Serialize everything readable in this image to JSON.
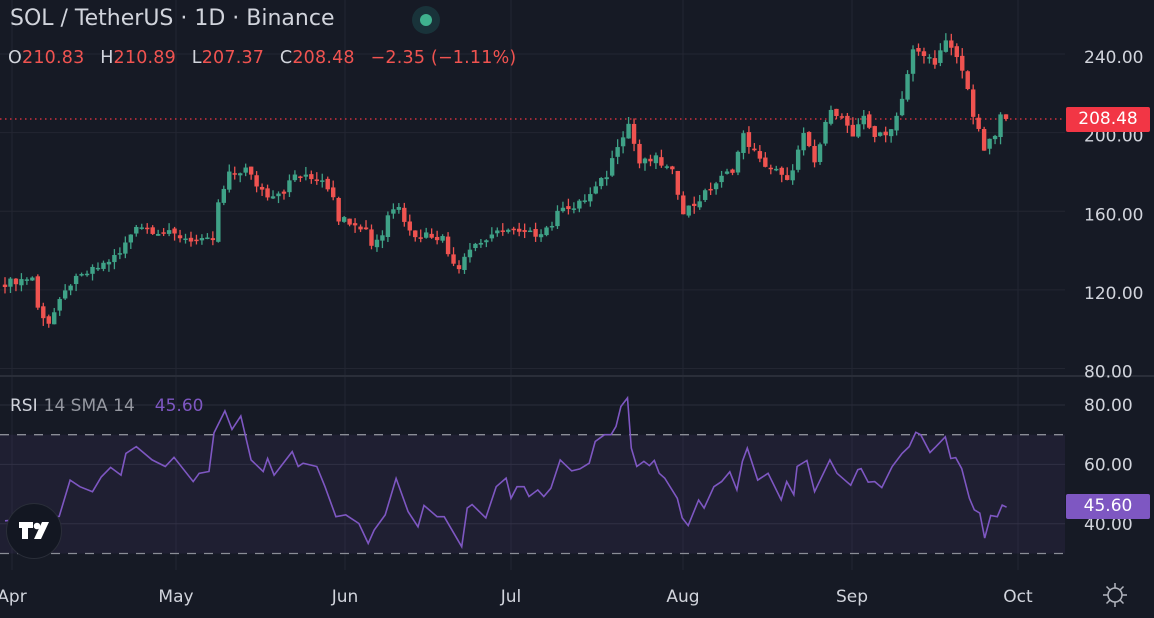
{
  "header": {
    "title": "SOL / TetherUS · 1D · Binance",
    "status_color": "#3fb18e"
  },
  "ohlc": {
    "o_label": "O",
    "o": "210.83",
    "h_label": "H",
    "h": "210.89",
    "l_label": "L",
    "l": "207.37",
    "c_label": "C",
    "c": "208.48",
    "change": "−2.35 (−1.11%)"
  },
  "price_axis": {
    "labels": [
      "240.00",
      "200.00",
      "160.00",
      "120.00",
      "80.00"
    ],
    "last_price": "208.48",
    "last_color": "#f23645"
  },
  "rsi": {
    "name": "RSI",
    "params": "14 SMA 14",
    "value": "45.60",
    "axis_labels": [
      "80.00",
      "60.00",
      "40.00"
    ],
    "color": "#7e57c2"
  },
  "time_axis": {
    "labels": [
      "Apr",
      "May",
      "Jun",
      "Jul",
      "Aug",
      "Sep",
      "Oct"
    ]
  },
  "colors": {
    "up": "#3fa287",
    "down": "#ef5350",
    "background": "#161a25"
  },
  "chart_data": [
    {
      "type": "candlestick",
      "title": "SOL / TetherUS · 1D · Binance",
      "x_unit": "days since Mar 31",
      "ylim": [
        80,
        260
      ],
      "yticks": [
        80,
        120,
        160,
        200,
        240
      ],
      "last_candle": {
        "open": 210.83,
        "high": 210.89,
        "low": 207.37,
        "close": 208.48
      },
      "close_path": [
        [
          0,
          125
        ],
        [
          5,
          128
        ],
        [
          6,
          112
        ],
        [
          8,
          105
        ],
        [
          10,
          115
        ],
        [
          12,
          125
        ],
        [
          15,
          130
        ],
        [
          17,
          133
        ],
        [
          21,
          140
        ],
        [
          23,
          150
        ],
        [
          24,
          155
        ],
        [
          27,
          152
        ],
        [
          30,
          150
        ],
        [
          33,
          148
        ],
        [
          36,
          146
        ],
        [
          38,
          147
        ],
        [
          39,
          165
        ],
        [
          41,
          180
        ],
        [
          44,
          183
        ],
        [
          46,
          175
        ],
        [
          48,
          170
        ],
        [
          51,
          172
        ],
        [
          53,
          180
        ],
        [
          56,
          178
        ],
        [
          58,
          178
        ],
        [
          60,
          170
        ],
        [
          61,
          158
        ],
        [
          64,
          156
        ],
        [
          66,
          152
        ],
        [
          67,
          145
        ],
        [
          69,
          150
        ],
        [
          70,
          160
        ],
        [
          72,
          165
        ],
        [
          73,
          158
        ],
        [
          75,
          148
        ],
        [
          77,
          150
        ],
        [
          80,
          148
        ],
        [
          81,
          140
        ],
        [
          83,
          133
        ],
        [
          84,
          140
        ],
        [
          86,
          145
        ],
        [
          89,
          148
        ],
        [
          91,
          153
        ],
        [
          94,
          150
        ],
        [
          97,
          150
        ],
        [
          100,
          155
        ],
        [
          102,
          165
        ],
        [
          104,
          163
        ],
        [
          107,
          170
        ],
        [
          110,
          180
        ],
        [
          112,
          196
        ],
        [
          114,
          206
        ],
        [
          116,
          186
        ],
        [
          119,
          188
        ],
        [
          122,
          181
        ],
        [
          124,
          162
        ],
        [
          126,
          165
        ],
        [
          130,
          176
        ],
        [
          133,
          183
        ],
        [
          135,
          200
        ],
        [
          138,
          187
        ],
        [
          141,
          182
        ],
        [
          143,
          176
        ],
        [
          146,
          200
        ],
        [
          148,
          186
        ],
        [
          151,
          215
        ],
        [
          154,
          205
        ],
        [
          155,
          198
        ],
        [
          157,
          210
        ],
        [
          159,
          200
        ],
        [
          161,
          200
        ],
        [
          163,
          210
        ],
        [
          164,
          220
        ],
        [
          166,
          243
        ],
        [
          170,
          238
        ],
        [
          172,
          247
        ],
        [
          174,
          240
        ],
        [
          176,
          225
        ],
        [
          177,
          210
        ],
        [
          179,
          193
        ],
        [
          181,
          200
        ],
        [
          182,
          210
        ],
        [
          183,
          208.48
        ]
      ]
    },
    {
      "type": "line",
      "title": "RSI 14 SMA 14",
      "ylim": [
        20,
        85
      ],
      "yticks": [
        40,
        60,
        80
      ],
      "bands": [
        30,
        70
      ],
      "last_value": 45.6,
      "points": [
        [
          0,
          41
        ],
        [
          9.9,
          42.5
        ],
        [
          11.9,
          54.7
        ],
        [
          13.7,
          52.5
        ],
        [
          16,
          50.8
        ],
        [
          17.6,
          55.8
        ],
        [
          19.3,
          59
        ],
        [
          21.2,
          56.4
        ],
        [
          22.1,
          63.7
        ],
        [
          24,
          66
        ],
        [
          26.9,
          61.5
        ],
        [
          29.3,
          59.3
        ],
        [
          30.9,
          62.4
        ],
        [
          34.4,
          54.2
        ],
        [
          35.5,
          57
        ],
        [
          37.3,
          57.6
        ],
        [
          38.2,
          70.6
        ],
        [
          40.2,
          78
        ],
        [
          41.5,
          71.8
        ],
        [
          43.1,
          76.3
        ],
        [
          45,
          61.5
        ],
        [
          47.2,
          57.6
        ],
        [
          48,
          62
        ],
        [
          49.2,
          56.4
        ],
        [
          52.5,
          64.3
        ],
        [
          53.6,
          59.3
        ],
        [
          54.5,
          60.4
        ],
        [
          57,
          59.3
        ],
        [
          58.5,
          52.5
        ],
        [
          60.5,
          42.4
        ],
        [
          62.3,
          43
        ],
        [
          64.7,
          40.1
        ],
        [
          66.4,
          33.4
        ],
        [
          67.5,
          37.9
        ],
        [
          69.5,
          43
        ],
        [
          71.5,
          55.3
        ],
        [
          73.7,
          44.1
        ],
        [
          75.5,
          39
        ],
        [
          76.6,
          46.2
        ],
        [
          79,
          42.4
        ],
        [
          80.3,
          42.4
        ],
        [
          83.5,
          32.3
        ],
        [
          84.5,
          45.3
        ],
        [
          85.4,
          46.5
        ],
        [
          87.9,
          42
        ],
        [
          89.8,
          52.5
        ],
        [
          91.6,
          55.4
        ],
        [
          92.5,
          48.6
        ],
        [
          93.6,
          52.5
        ],
        [
          94.9,
          52.5
        ],
        [
          95.8,
          49.2
        ],
        [
          97.4,
          51.4
        ],
        [
          98.5,
          49.2
        ],
        [
          99.8,
          52
        ],
        [
          101.5,
          61.5
        ],
        [
          103.6,
          57.8
        ],
        [
          105.1,
          58.5
        ],
        [
          106.8,
          60.4
        ],
        [
          107.9,
          67.7
        ],
        [
          109.6,
          70
        ],
        [
          110.8,
          70
        ],
        [
          111.7,
          72.8
        ],
        [
          112.6,
          79.5
        ],
        [
          113.8,
          82.4
        ],
        [
          114.5,
          65.5
        ],
        [
          115.5,
          59.3
        ],
        [
          116.8,
          61
        ],
        [
          117.8,
          59.6
        ],
        [
          118.7,
          61.3
        ],
        [
          119.6,
          57
        ],
        [
          120.6,
          55.4
        ],
        [
          122.9,
          48.6
        ],
        [
          123.8,
          42
        ],
        [
          124.9,
          39.4
        ],
        [
          126.8,
          48
        ],
        [
          127.8,
          45.3
        ],
        [
          129.6,
          52.5
        ],
        [
          131,
          54.2
        ],
        [
          132.5,
          57.5
        ],
        [
          133.8,
          51.4
        ],
        [
          134.8,
          61
        ],
        [
          135.7,
          65.5
        ],
        [
          137.6,
          54.7
        ],
        [
          139.5,
          57
        ],
        [
          141.9,
          48
        ],
        [
          142.9,
          54.2
        ],
        [
          144.2,
          49.8
        ],
        [
          144.8,
          59.3
        ],
        [
          146.6,
          61.3
        ],
        [
          148,
          50.8
        ],
        [
          150.8,
          61.5
        ],
        [
          152.1,
          57
        ],
        [
          154.6,
          53
        ],
        [
          155.9,
          58.2
        ],
        [
          156.5,
          58.6
        ],
        [
          157.8,
          54
        ],
        [
          159,
          54.2
        ],
        [
          160.3,
          52.2
        ],
        [
          162.2,
          59.3
        ],
        [
          164,
          63.7
        ],
        [
          165.3,
          66
        ],
        [
          166.5,
          70.8
        ],
        [
          167.4,
          70
        ],
        [
          169.1,
          64
        ],
        [
          170.2,
          66
        ],
        [
          171.9,
          69.3
        ],
        [
          172.9,
          62
        ],
        [
          173.8,
          62.3
        ],
        [
          174.9,
          58.6
        ],
        [
          176.3,
          48.6
        ],
        [
          177.2,
          44.7
        ],
        [
          178.2,
          43.6
        ],
        [
          179.1,
          35.2
        ],
        [
          180.2,
          42.8
        ],
        [
          181.4,
          42.4
        ],
        [
          182.3,
          46.3
        ],
        [
          183.1,
          45.6
        ]
      ]
    }
  ]
}
